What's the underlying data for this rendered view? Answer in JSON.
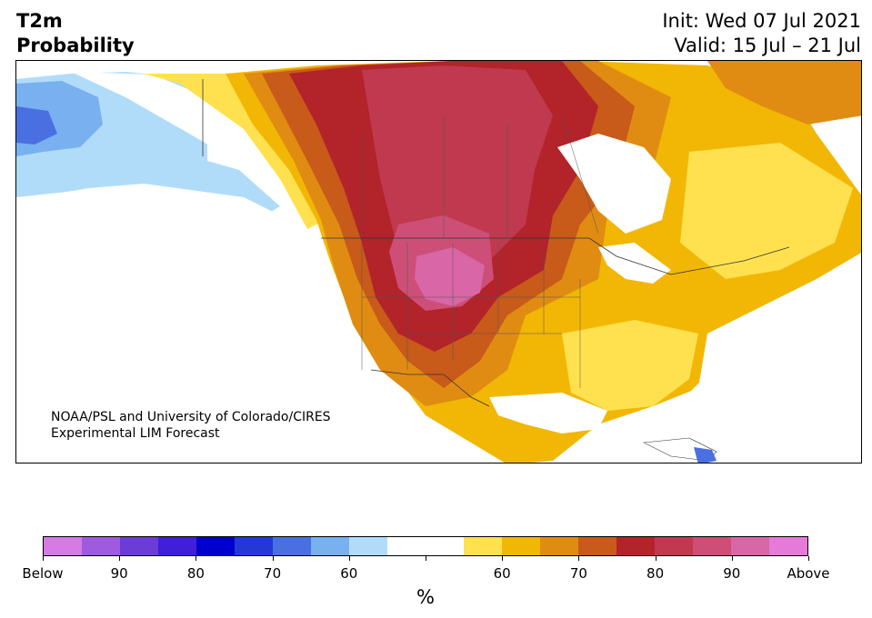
{
  "header": {
    "title_line1": "T2m",
    "title_line2": "Probability",
    "init": "Init: Wed 07 Jul 2021",
    "valid": "Valid: 15 Jul – 21 Jul"
  },
  "credit": {
    "line1": "NOAA/PSL and University of Colorado/CIRES",
    "line2": "Experimental LIM Forecast"
  },
  "colorbar": {
    "colors": [
      "#d67ae6",
      "#9e5be0",
      "#6a3dd6",
      "#3f20d8",
      "#0000cd",
      "#2438d8",
      "#4a6fe0",
      "#78b0f0",
      "#b0dcfa",
      "#ffffff",
      "#ffffff",
      "#ffe14f",
      "#f2b705",
      "#e08c12",
      "#c85a1a",
      "#b2232a",
      "#c0394f",
      "#cd4f78",
      "#d966a6",
      "#e67ad6"
    ],
    "labels": [
      "Below",
      "90",
      "80",
      "70",
      "60",
      "",
      "60",
      "70",
      "80",
      "90",
      "Above"
    ],
    "units": "%"
  },
  "map": {
    "type": "probability map",
    "region": "North America",
    "legend_position": "bottom"
  }
}
